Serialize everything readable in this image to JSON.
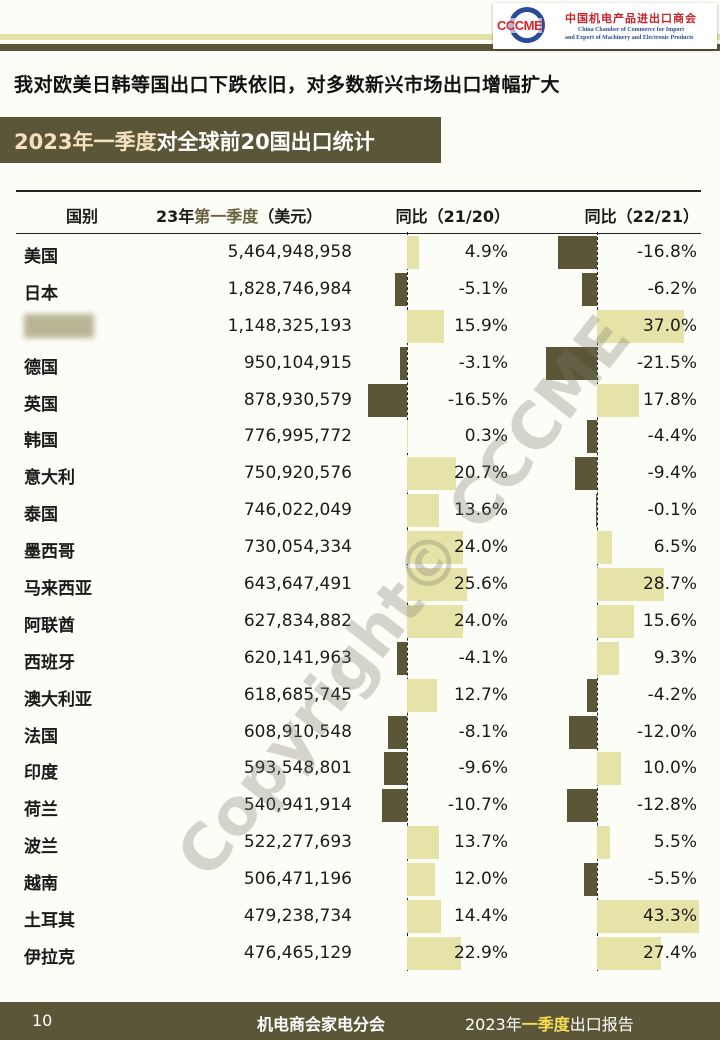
{
  "logo": {
    "mark": "CCCME",
    "name_cn": "中国机电产品进出口商会",
    "name_en_1": "China Chamber of Commerce for Import",
    "name_en_2": "and Export of Machinery and Electronic Products"
  },
  "headline": "我对欧美日韩等国出口下跌依旧，对多数新兴市场出口增幅扩大",
  "title": {
    "highlight": "2023年一季度",
    "rest": "对全球前20国出口统计"
  },
  "table": {
    "headers": {
      "country": "国别",
      "amount_a": "23年",
      "amount_b": "第一季度",
      "amount_c": "（美元）",
      "yoy1": "同比（21/20）",
      "yoy2": "同比（22/21）"
    },
    "rows": [
      {
        "country": "美国",
        "amount": "5,464,948,958",
        "yoy1": "4.9%",
        "v1": 4.9,
        "yoy2": "-16.8%",
        "v2": -16.8
      },
      {
        "country": "日本",
        "amount": "1,828,746,984",
        "yoy1": "-5.1%",
        "v1": -5.1,
        "yoy2": "-6.2%",
        "v2": -6.2
      },
      {
        "country": "",
        "amount": "1,148,325,193",
        "yoy1": "15.9%",
        "v1": 15.9,
        "yoy2": "37.0%",
        "v2": 37.0
      },
      {
        "country": "德国",
        "amount": "950,104,915",
        "yoy1": "-3.1%",
        "v1": -3.1,
        "yoy2": "-21.5%",
        "v2": -21.5
      },
      {
        "country": "英国",
        "amount": "878,930,579",
        "yoy1": "-16.5%",
        "v1": -16.5,
        "yoy2": "17.8%",
        "v2": 17.8
      },
      {
        "country": "韩国",
        "amount": "776,995,772",
        "yoy1": "0.3%",
        "v1": 0.3,
        "yoy2": "-4.4%",
        "v2": -4.4
      },
      {
        "country": "意大利",
        "amount": "750,920,576",
        "yoy1": "20.7%",
        "v1": 20.7,
        "yoy2": "-9.4%",
        "v2": -9.4
      },
      {
        "country": "泰国",
        "amount": "746,022,049",
        "yoy1": "13.6%",
        "v1": 13.6,
        "yoy2": "-0.1%",
        "v2": -0.1
      },
      {
        "country": "墨西哥",
        "amount": "730,054,334",
        "yoy1": "24.0%",
        "v1": 24.0,
        "yoy2": "6.5%",
        "v2": 6.5
      },
      {
        "country": "马来西亚",
        "amount": "643,647,491",
        "yoy1": "25.6%",
        "v1": 25.6,
        "yoy2": "28.7%",
        "v2": 28.7
      },
      {
        "country": "阿联酋",
        "amount": "627,834,882",
        "yoy1": "24.0%",
        "v1": 24.0,
        "yoy2": "15.6%",
        "v2": 15.6
      },
      {
        "country": "西班牙",
        "amount": "620,141,963",
        "yoy1": "-4.1%",
        "v1": -4.1,
        "yoy2": "9.3%",
        "v2": 9.3
      },
      {
        "country": "澳大利亚",
        "amount": "618,685,745",
        "yoy1": "12.7%",
        "v1": 12.7,
        "yoy2": "-4.2%",
        "v2": -4.2
      },
      {
        "country": "法国",
        "amount": "608,910,548",
        "yoy1": "-8.1%",
        "v1": -8.1,
        "yoy2": "-12.0%",
        "v2": -12.0
      },
      {
        "country": "印度",
        "amount": "593,548,801",
        "yoy1": "-9.6%",
        "v1": -9.6,
        "yoy2": "10.0%",
        "v2": 10.0
      },
      {
        "country": "荷兰",
        "amount": "540,941,914",
        "yoy1": "-10.7%",
        "v1": -10.7,
        "yoy2": "-12.8%",
        "v2": -12.8
      },
      {
        "country": "波兰",
        "amount": "522,277,693",
        "yoy1": "13.7%",
        "v1": 13.7,
        "yoy2": "5.5%",
        "v2": 5.5
      },
      {
        "country": "越南",
        "amount": "506,471,196",
        "yoy1": "12.0%",
        "v1": 12.0,
        "yoy2": "-5.5%",
        "v2": -5.5
      },
      {
        "country": "土耳其",
        "amount": "479,238,734",
        "yoy1": "14.4%",
        "v1": 14.4,
        "yoy2": "43.3%",
        "v2": 43.3
      },
      {
        "country": "伊拉克",
        "amount": "476,465,129",
        "yoy1": "22.9%",
        "v1": 22.9,
        "yoy2": "27.4%",
        "v2": 27.4
      }
    ]
  },
  "colors": {
    "positive": "#e6e3a9",
    "negative": "#5c5639"
  },
  "watermark": "Copyright© CCCME",
  "footer": {
    "page": "10",
    "org": "机电商会家电分会",
    "report_a": "2023年",
    "report_b": "一季度",
    "report_c": "出口报告"
  }
}
